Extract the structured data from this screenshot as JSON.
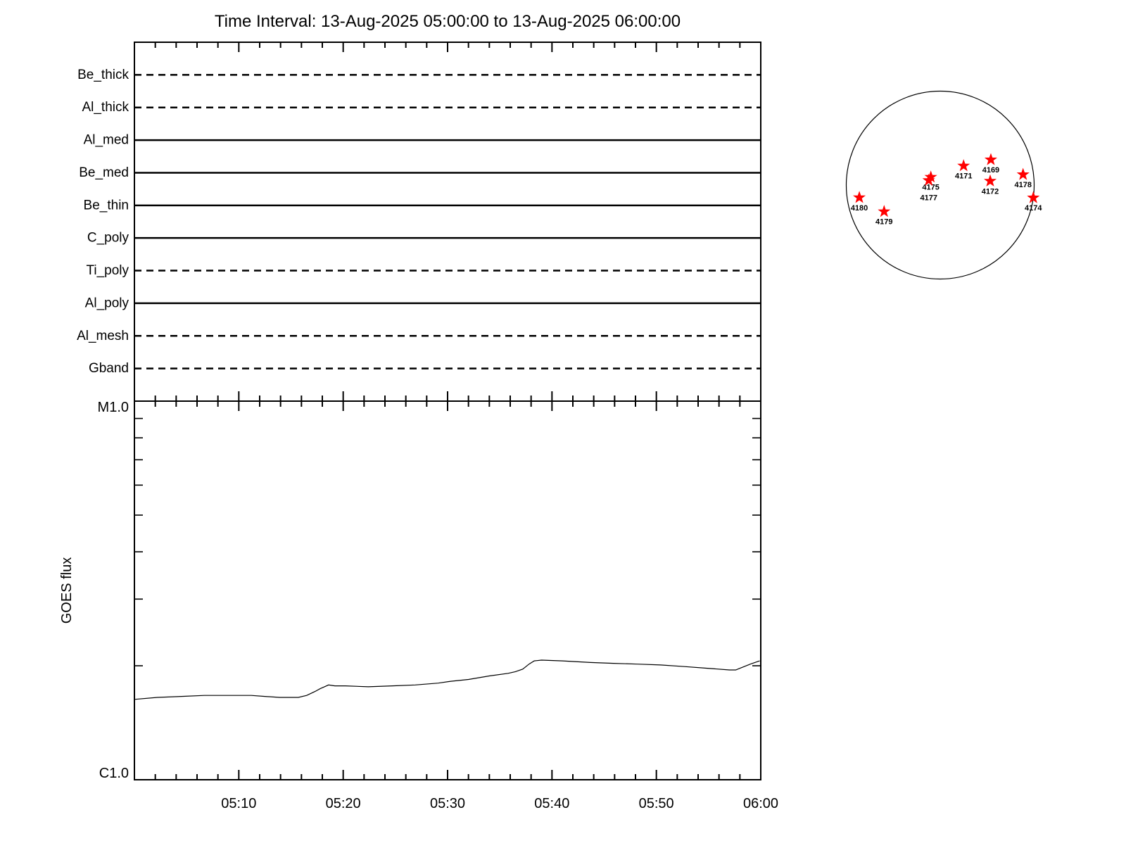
{
  "title": "Time Interval: 13-Aug-2025 05:00:00 to 13-Aug-2025 06:00:00",
  "colors": {
    "foreground": "#000000",
    "background": "#ffffff",
    "star": "#ff0000"
  },
  "chart_data": [
    {
      "type": "table",
      "name": "filter-timeline",
      "description": "Instrument filter rows with horizontal status lines across the time interval",
      "rows": [
        {
          "label": "Be_thick",
          "style": "dashed"
        },
        {
          "label": "Al_thick",
          "style": "dashed"
        },
        {
          "label": "Al_med",
          "style": "solid"
        },
        {
          "label": "Be_med",
          "style": "solid"
        },
        {
          "label": "Be_thin",
          "style": "solid"
        },
        {
          "label": "C_poly",
          "style": "solid"
        },
        {
          "label": "Ti_poly",
          "style": "dashed"
        },
        {
          "label": "Al_poly",
          "style": "solid"
        },
        {
          "label": "Al_mesh",
          "style": "dashed"
        },
        {
          "label": "Gband",
          "style": "dashed"
        }
      ],
      "x_range_minutes": [
        0,
        60
      ],
      "x_minor_step_minutes": 2,
      "x_major_step_minutes": 10
    },
    {
      "type": "line",
      "name": "goes-flux",
      "ylabel": "GOES flux",
      "y_axis": {
        "scale": "log",
        "top_label": "M1.0",
        "bottom_label": "C1.0",
        "decades": 1,
        "minor_tick_multipliers": [
          2,
          3,
          4,
          5,
          6,
          7,
          8,
          9
        ]
      },
      "x_axis": {
        "range_minutes": [
          0,
          60
        ],
        "major_tick_minutes": [
          10,
          20,
          30,
          40,
          50,
          60
        ],
        "tick_labels": [
          "05:10",
          "05:20",
          "05:30",
          "05:40",
          "05:50",
          "06:00"
        ],
        "minor_step_minutes": 2
      },
      "series": [
        {
          "name": "GOES flux",
          "x_minutes": [
            0,
            2.2,
            4.5,
            6.7,
            8.9,
            11.2,
            12.5,
            13.9,
            15.0,
            15.7,
            16.5,
            17.3,
            17.8,
            18.2,
            18.6,
            19.2,
            20.2,
            22.4,
            24.7,
            26.9,
            29.1,
            30.3,
            32.0,
            34.0,
            35.8,
            36.5,
            37.2,
            37.8,
            38.3,
            39.0,
            41.0,
            43.7,
            45.9,
            48.2,
            50.4,
            52.7,
            54.9,
            57.0,
            57.6,
            58.2,
            59.0,
            59.9
          ],
          "flux_c_units": [
            1.63,
            1.65,
            1.66,
            1.67,
            1.67,
            1.67,
            1.66,
            1.65,
            1.65,
            1.65,
            1.67,
            1.71,
            1.74,
            1.76,
            1.78,
            1.77,
            1.77,
            1.76,
            1.77,
            1.78,
            1.8,
            1.82,
            1.84,
            1.88,
            1.91,
            1.93,
            1.96,
            2.02,
            2.06,
            2.07,
            2.06,
            2.04,
            2.03,
            2.02,
            2.01,
            1.99,
            1.97,
            1.95,
            1.95,
            1.98,
            2.02,
            2.06
          ]
        }
      ]
    },
    {
      "type": "scatter",
      "name": "solar-disk-active-regions",
      "marker": "star",
      "description": "Active regions on the solar disk, coordinates as fraction of disk radius from center (x right, y down)",
      "regions": [
        {
          "label": "4180",
          "x": -0.861,
          "y": 0.133
        },
        {
          "label": "4179",
          "x": -0.597,
          "y": 0.282
        },
        {
          "label": "4175",
          "x": -0.1,
          "y": -0.085
        },
        {
          "label": "4177",
          "x": -0.122,
          "y": -0.05,
          "label_dy": 25
        },
        {
          "label": "4171",
          "x": 0.249,
          "y": -0.205
        },
        {
          "label": "4169",
          "x": 0.539,
          "y": -0.27
        },
        {
          "label": "4172",
          "x": 0.532,
          "y": -0.043
        },
        {
          "label": "4178",
          "x": 0.882,
          "y": -0.112
        },
        {
          "label": "4174",
          "x": 0.991,
          "y": 0.135
        }
      ]
    }
  ]
}
